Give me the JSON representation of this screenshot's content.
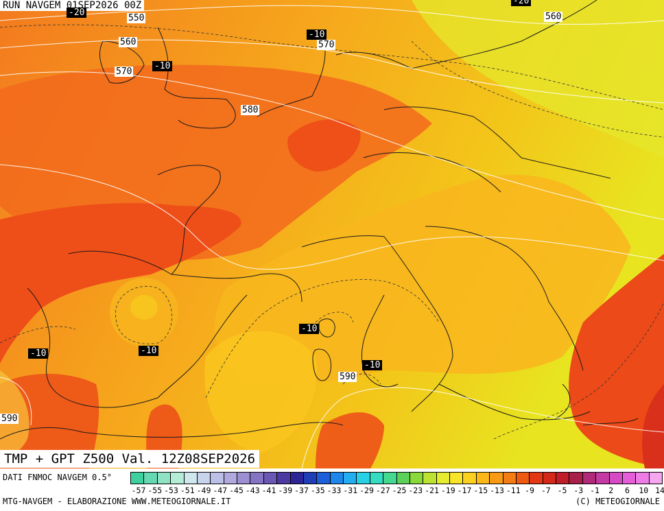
{
  "header": {
    "run": "RUN NAVGEM 01SEP2026 00Z"
  },
  "title": "TMP + GPT Z500 Val. 12Z08SEP2026",
  "footer": {
    "source": "DATI FNMOC NAVGEM 0.5°",
    "credit_left": "MTG-NAVGEM - ELABORAZIONE WWW.METEOGIORNALE.IT",
    "credit_right": "(C) METEOGIORNALE"
  },
  "map_labels": {
    "gpt_550": "550",
    "gpt_560_w": "560",
    "gpt_570_w": "570",
    "gpt_570_n": "570",
    "gpt_560_ne": "560",
    "gpt_580": "580",
    "gpt_590_s": "590",
    "gpt_590_w": "590",
    "tmp_minus20_nw": "-20",
    "tmp_minus20_ne": "-20",
    "tmp_minus10_uk": "-10",
    "tmp_minus10_dk": "-10",
    "tmp_minus10_corsica": "-10",
    "tmp_minus10_spain": "-10",
    "tmp_minus10_portugal": "-10",
    "tmp_minus10_italy": "-10"
  },
  "colorbar": {
    "labels": [
      "-57",
      "-55",
      "-53",
      "-51",
      "-49",
      "-47",
      "-45",
      "-43",
      "-41",
      "-39",
      "-37",
      "-35",
      "-33",
      "-31",
      "-29",
      "-27",
      "-25",
      "-23",
      "-21",
      "-19",
      "-17",
      "-15",
      "-13",
      "-11",
      "-9",
      "-7",
      "-5",
      "-3",
      "-1",
      "2",
      "6",
      "10",
      "14"
    ],
    "colors": [
      "#3fd0a0",
      "#66d9b2",
      "#8fe3c4",
      "#b4ecd6",
      "#cfe8ee",
      "#c8d4ec",
      "#bcc0e6",
      "#b0a9de",
      "#9c8fd2",
      "#8574c4",
      "#6a58b4",
      "#4c3aa2",
      "#2d2596",
      "#1f3fb8",
      "#1d5fd8",
      "#1f86ec",
      "#22aef0",
      "#2ad0e4",
      "#36dcc0",
      "#44d890",
      "#5cd25a",
      "#8ad83a",
      "#bce232",
      "#e6ec30",
      "#f8e428",
      "#fcd020",
      "#fcb818",
      "#f89a14",
      "#f47c12",
      "#ee5a12",
      "#e43814",
      "#d42818",
      "#c01e28",
      "#a8204a",
      "#b02a78",
      "#c23aa2",
      "#d64ac4",
      "#e45ed8",
      "#ee7ce6",
      "#f4a6ee"
    ]
  }
}
